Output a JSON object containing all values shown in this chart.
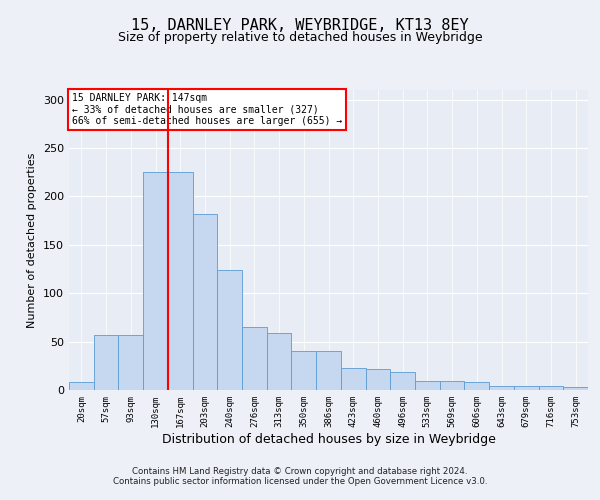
{
  "title1": "15, DARNLEY PARK, WEYBRIDGE, KT13 8EY",
  "title2": "Size of property relative to detached houses in Weybridge",
  "xlabel": "Distribution of detached houses by size in Weybridge",
  "ylabel": "Number of detached properties",
  "bar_labels": [
    "20sqm",
    "57sqm",
    "93sqm",
    "130sqm",
    "167sqm",
    "203sqm",
    "240sqm",
    "276sqm",
    "313sqm",
    "350sqm",
    "386sqm",
    "423sqm",
    "460sqm",
    "496sqm",
    "533sqm",
    "569sqm",
    "606sqm",
    "643sqm",
    "679sqm",
    "716sqm",
    "753sqm"
  ],
  "bar_heights": [
    8,
    57,
    57,
    225,
    225,
    182,
    124,
    65,
    59,
    40,
    40,
    23,
    22,
    19,
    9,
    9,
    8,
    4,
    4,
    4,
    3
  ],
  "bar_color": "#c5d8f0",
  "bar_edge_color": "#5b9bd5",
  "vline_x": 3.5,
  "vline_color": "red",
  "annotation_title": "15 DARNLEY PARK: 147sqm",
  "annotation_line2": "← 33% of detached houses are smaller (327)",
  "annotation_line3": "66% of semi-detached houses are larger (655) →",
  "annotation_box_color": "red",
  "ylim": [
    0,
    310
  ],
  "yticks": [
    0,
    50,
    100,
    150,
    200,
    250,
    300
  ],
  "footer1": "Contains HM Land Registry data © Crown copyright and database right 2024.",
  "footer2": "Contains public sector information licensed under the Open Government Licence v3.0.",
  "bg_color": "#edf1f7",
  "plot_bg_color": "#e8edf5"
}
